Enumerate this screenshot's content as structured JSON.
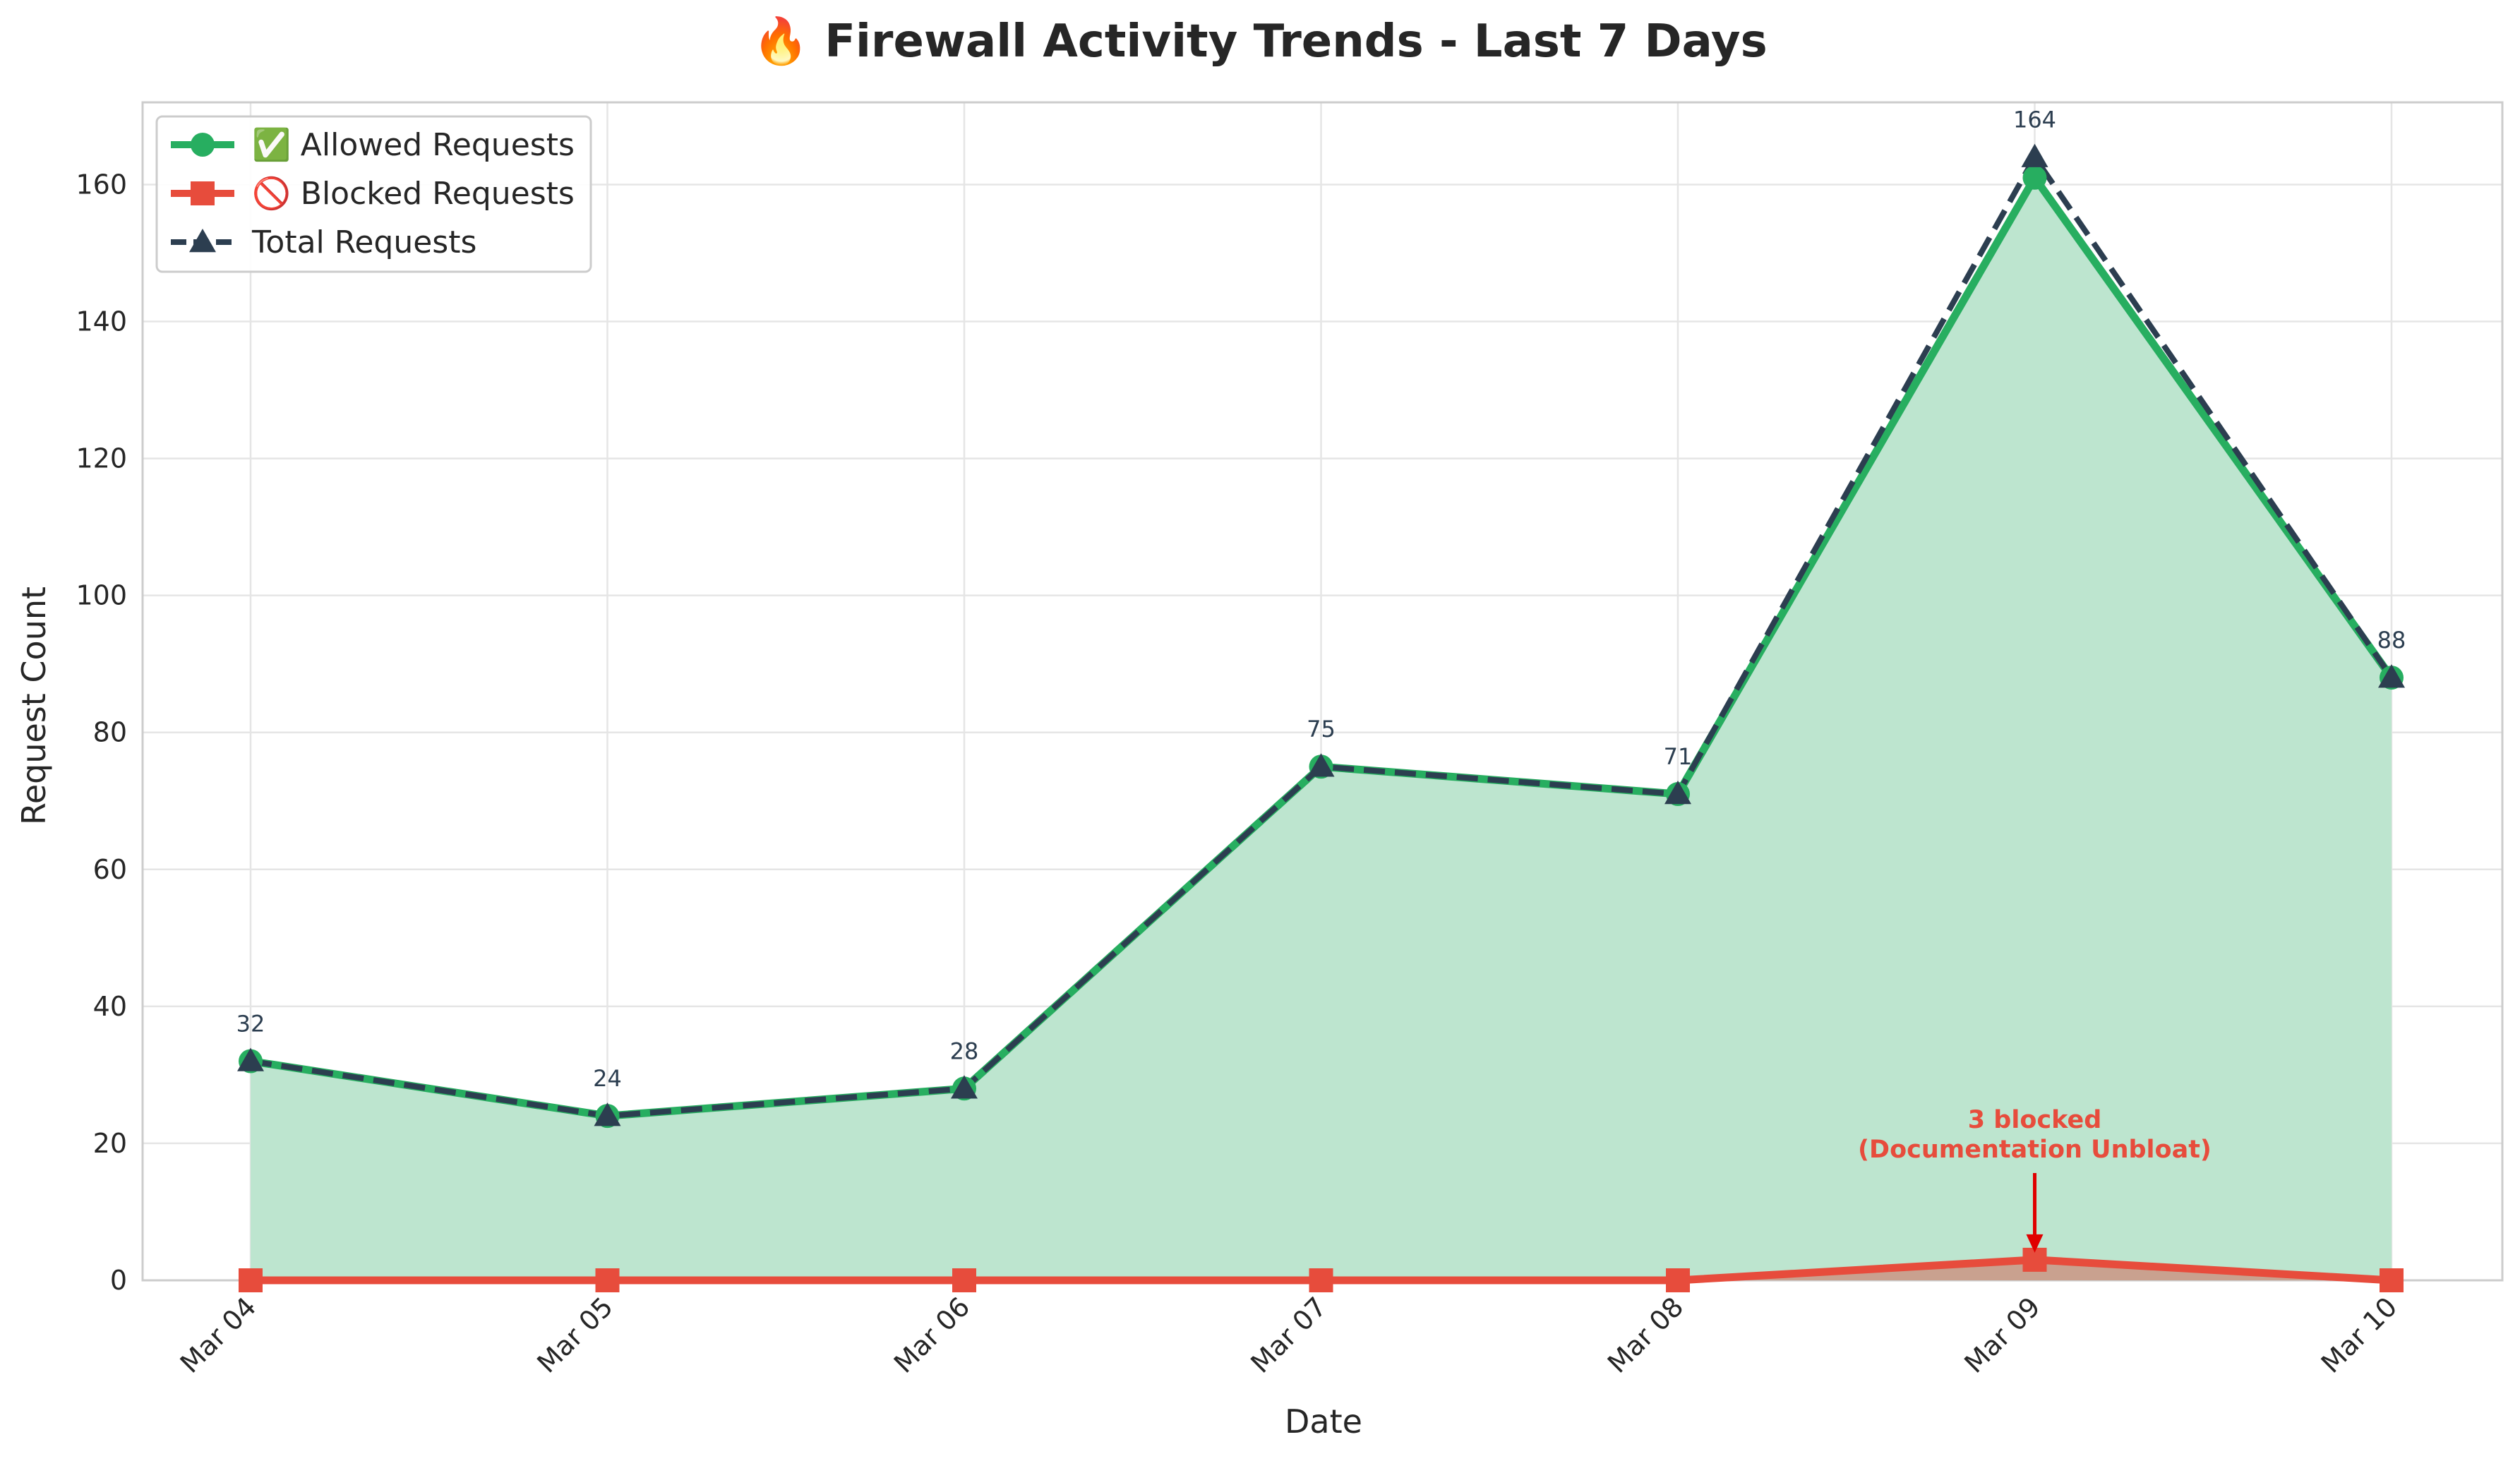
{
  "chart_data": {
    "type": "line",
    "title": "🔥 Firewall Activity Trends - Last 7 Days",
    "xlabel": "Date",
    "ylabel": "Request Count",
    "categories": [
      "Mar 04",
      "Mar 05",
      "Mar 06",
      "Mar 07",
      "Mar 08",
      "Mar 09",
      "Mar 10"
    ],
    "ylim": [
      0,
      172
    ],
    "yticks": [
      0,
      20,
      40,
      60,
      80,
      100,
      120,
      140,
      160
    ],
    "grid": true,
    "legend_position": "top-left",
    "series": [
      {
        "name": "✅ Allowed Requests",
        "values": [
          32,
          24,
          28,
          75,
          71,
          161,
          88
        ],
        "color": "#27ae60",
        "marker": "circle",
        "style": "solid",
        "fill": "#bde5cf"
      },
      {
        "name": "🚫 Blocked Requests",
        "values": [
          0,
          0,
          0,
          0,
          0,
          3,
          0
        ],
        "color": "#e74c3c",
        "marker": "square",
        "style": "solid",
        "fill": "#c9a18f"
      },
      {
        "name": "Total Requests",
        "values": [
          32,
          24,
          28,
          75,
          71,
          164,
          88
        ],
        "color": "#2c3e50",
        "marker": "triangle",
        "style": "dashed"
      }
    ],
    "data_labels": [
      "32",
      "24",
      "28",
      "75",
      "71",
      "164",
      "88"
    ],
    "annotation": {
      "line1": "3 blocked",
      "line2": "(Documentation Unbloat)",
      "x": "Mar 09",
      "y": 3,
      "color": "#e74c3c"
    }
  }
}
